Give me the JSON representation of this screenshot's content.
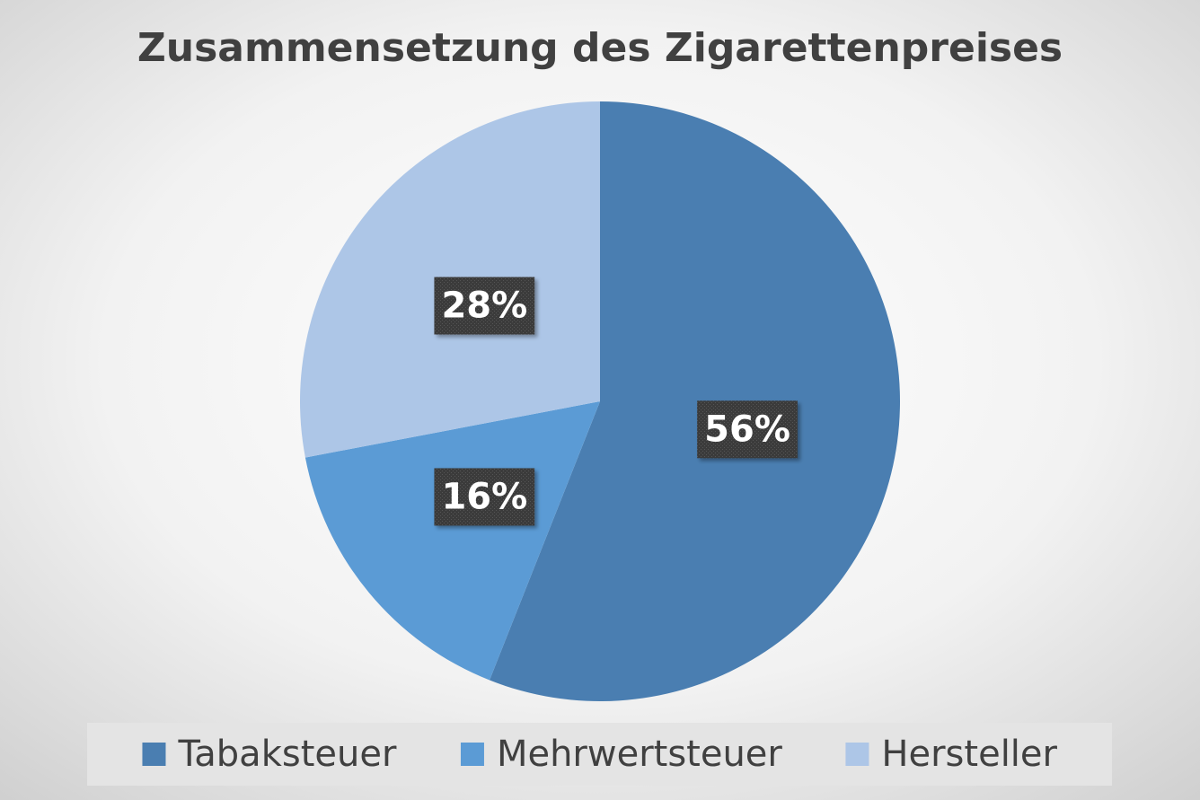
{
  "chart_data": {
    "type": "pie",
    "title": "Zusammensetzung des Zigarettenpreises",
    "categories": [
      "Tabaksteuer",
      "Mehrwertsteuer",
      "Hersteller"
    ],
    "values": [
      56,
      16,
      28
    ],
    "value_labels": [
      "56%",
      "16%",
      "28%"
    ],
    "colors": [
      "#4a7eb1",
      "#5b9bd5",
      "#adc6e7"
    ],
    "legend": "bottom"
  }
}
